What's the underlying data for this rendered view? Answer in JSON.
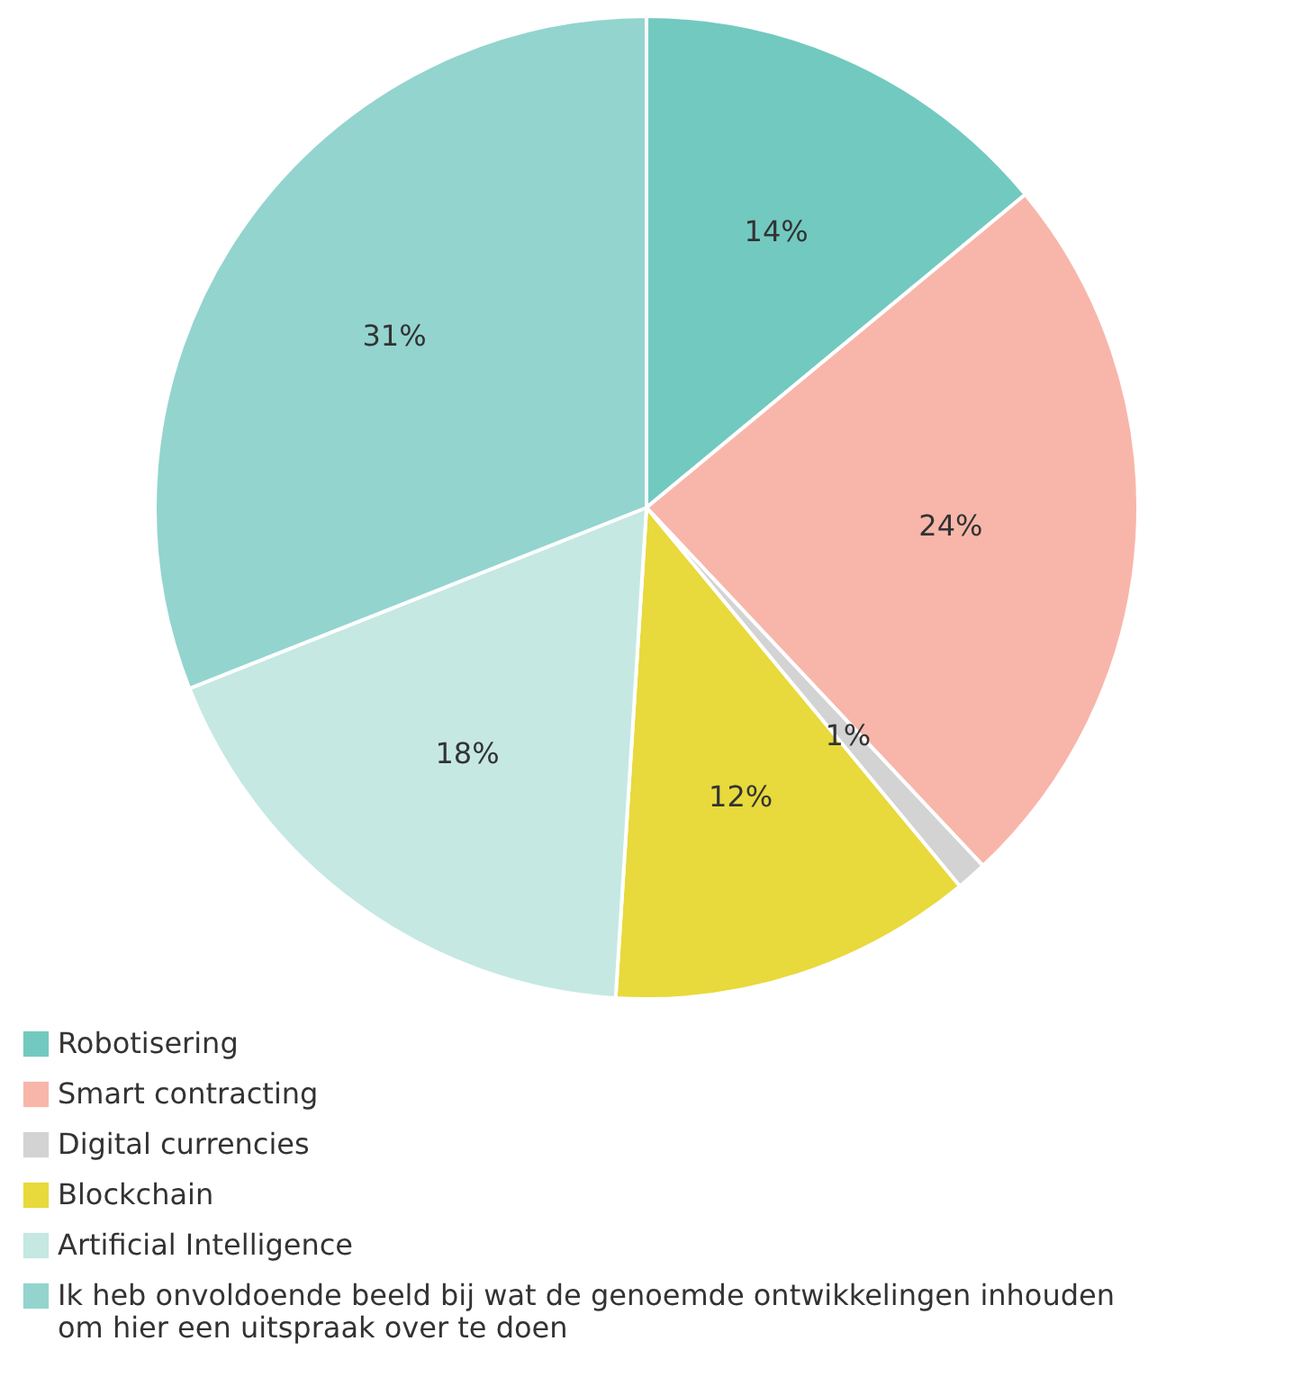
{
  "chart_data": {
    "type": "pie",
    "categories": [
      "Robotisering",
      "Smart contracting",
      "Digital currencies",
      "Blockchain",
      "Artificial Intelligence",
      "Ik heb onvoldoende beeld bij wat de genoemde ontwikkelingen inhouden om hier een uitspraak over te doen"
    ],
    "values": [
      14,
      24,
      1,
      12,
      18,
      31
    ],
    "value_labels": [
      "14%",
      "24%",
      "1%",
      "12%",
      "18%",
      "31%"
    ],
    "colors": [
      "#72c9c0",
      "#f8b6aa",
      "#d3d3d3",
      "#e8d93c",
      "#c5e8e3",
      "#93d4cf"
    ],
    "legend": "bottom"
  }
}
